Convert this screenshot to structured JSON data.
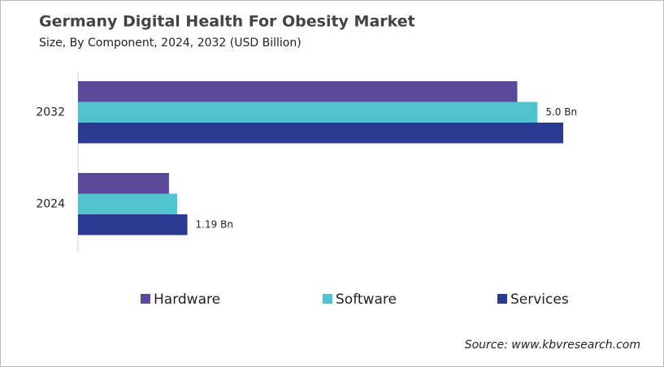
{
  "chart_data": {
    "type": "hbar",
    "title": "Germany Digital Health For Obesity Market",
    "subtitle": "Size, By Component, 2024, 2032 (USD Billion)",
    "categories": [
      "2032",
      "2024"
    ],
    "series": [
      {
        "name": "Hardware",
        "color": "#5b4a9b",
        "values": [
          4.78,
          0.99
        ]
      },
      {
        "name": "Software",
        "color": "#4fc4cf",
        "values": [
          5.0,
          1.08
        ],
        "value_labels": [
          "5.0 Bn",
          null
        ]
      },
      {
        "name": "Services",
        "color": "#2b3990",
        "values": [
          5.28,
          1.19
        ],
        "value_labels": [
          null,
          "1.19 Bn"
        ]
      }
    ],
    "legend": "bottom",
    "source": "Source: www.kbvresearch.com"
  }
}
